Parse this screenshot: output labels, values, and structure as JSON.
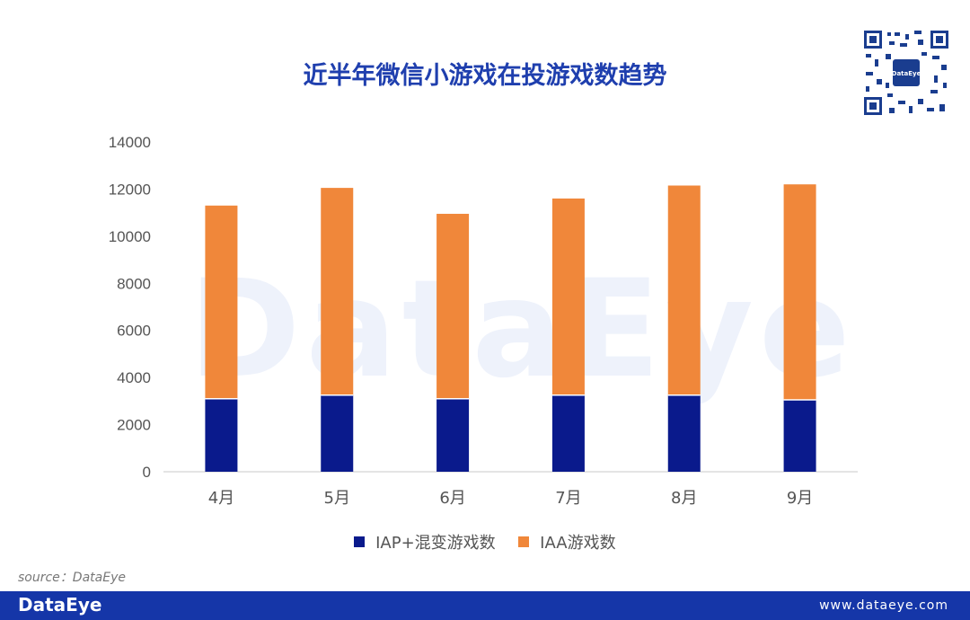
{
  "chart_data": {
    "type": "bar",
    "stacked": true,
    "title": "近半年微信小游戏在投游戏数趋势",
    "categories": [
      "4月",
      "5月",
      "6月",
      "7月",
      "8月",
      "9月"
    ],
    "series": [
      {
        "name": "IAP+混变游戏数",
        "color": "#0a1a8c",
        "values": [
          3100,
          3250,
          3100,
          3250,
          3250,
          3050
        ]
      },
      {
        "name": "IAA游戏数",
        "color": "#f0873a",
        "values": [
          8200,
          8800,
          7850,
          8350,
          8900,
          9150
        ]
      }
    ],
    "ylim": [
      0,
      14000
    ],
    "yticks": [
      0,
      2000,
      4000,
      6000,
      8000,
      10000,
      12000,
      14000
    ],
    "grid": false,
    "legend": "bottom"
  },
  "watermark": "DataEye",
  "qr_label": "DataEye",
  "source": "source：DataEye",
  "footer": {
    "logo": "DataEye",
    "url": "www.dataeye.com",
    "color": "#1536a8"
  }
}
